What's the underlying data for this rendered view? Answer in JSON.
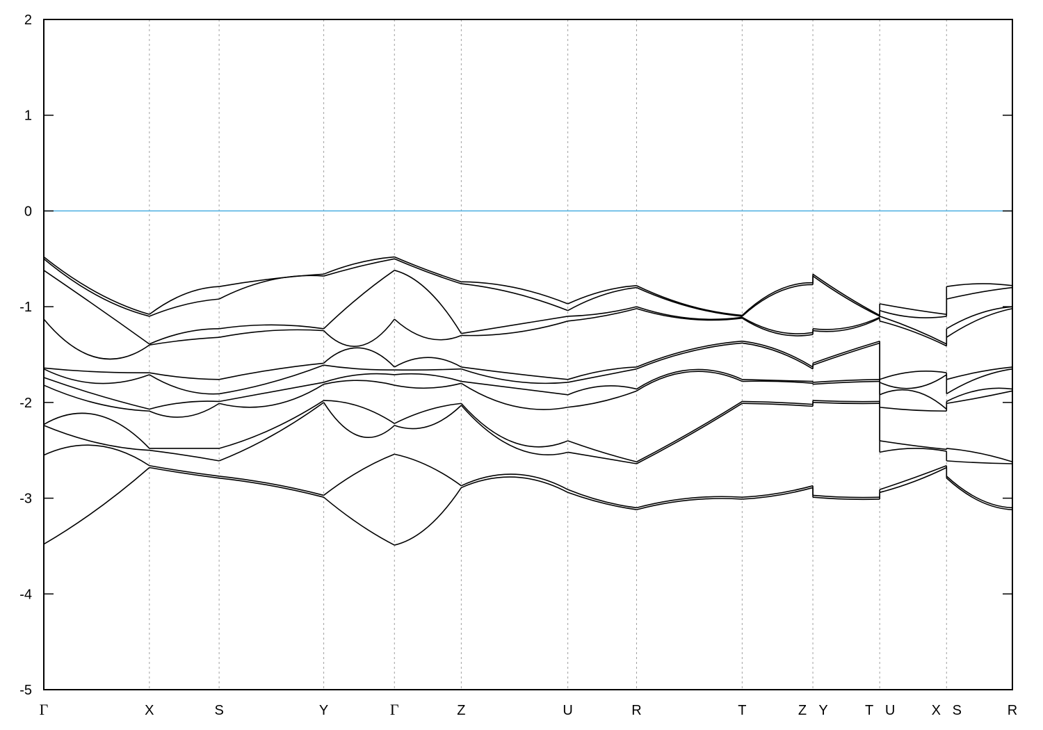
{
  "chart_data": {
    "type": "line",
    "title": "",
    "xlabel": "",
    "ylabel": "",
    "ylim": [
      -5,
      2
    ],
    "yticks": [
      -5,
      -4,
      -3,
      -2,
      -1,
      0,
      1,
      2
    ],
    "xlim": [
      0,
      1
    ],
    "grid": "vertical dashed at high-symmetry points",
    "fermi_level": 0,
    "colors": {
      "bands": "#000000",
      "fermi": "#4aaee0",
      "grid": "#a0a0a0"
    },
    "xticks": [
      {
        "k": 0,
        "labels": [
          "Γ"
        ]
      },
      {
        "k": 0.109,
        "labels": [
          "X"
        ]
      },
      {
        "k": 0.181,
        "labels": [
          "S"
        ]
      },
      {
        "k": 0.289,
        "labels": [
          "Y"
        ]
      },
      {
        "k": 0.362,
        "labels": [
          "Γ"
        ]
      },
      {
        "k": 0.431,
        "labels": [
          "Z"
        ]
      },
      {
        "k": 0.541,
        "labels": [
          "U"
        ]
      },
      {
        "k": 0.612,
        "labels": [
          "R"
        ]
      },
      {
        "k": 0.721,
        "labels": [
          "T"
        ]
      },
      {
        "k": 0.794,
        "labels": [
          "Z",
          "Y"
        ]
      },
      {
        "k": 0.863,
        "labels": [
          "T",
          "U"
        ]
      },
      {
        "k": 0.932,
        "labels": [
          "X",
          "S"
        ]
      },
      {
        "k": 1.0,
        "labels": [
          "R"
        ]
      }
    ],
    "segments": [
      {
        "path": "Γ-X",
        "k": [
          0,
          0.109
        ],
        "E": [
          [
            -0.48,
            -0.5,
            -0.62,
            -1.13,
            -1.64,
            -1.65,
            -1.74,
            -1.82,
            -2.23,
            -2.24,
            -2.55,
            -3.48
          ],
          [
            -0.85,
            -0.88,
            -1.0,
            -1.53,
            -1.68,
            -1.8,
            -1.92,
            -2.01,
            -2.13,
            -2.42,
            -2.45,
            -3.12
          ],
          [
            -1.08,
            -1.1,
            -1.39,
            -1.4,
            -1.69,
            -1.71,
            -2.07,
            -2.09,
            -2.48,
            -2.5,
            -2.66,
            -2.68
          ]
        ]
      },
      {
        "path": "X-S",
        "k": [
          0.109,
          0.181
        ],
        "E": [
          [
            -1.08,
            -1.1,
            -1.39,
            -1.4,
            -1.69,
            -1.71,
            -2.07,
            -2.09,
            -2.48,
            -2.5,
            -2.66,
            -2.68
          ],
          [
            -0.87,
            -0.98,
            -1.27,
            -1.35,
            -1.74,
            -1.87,
            -2.0,
            -2.15,
            -2.48,
            -2.55,
            -2.72,
            -2.74
          ],
          [
            -0.79,
            -0.92,
            -1.23,
            -1.32,
            -1.76,
            -1.91,
            -1.99,
            -2.01,
            -2.48,
            -2.61,
            -2.77,
            -2.79
          ]
        ]
      },
      {
        "path": "S-Y",
        "k": [
          0.181,
          0.289
        ],
        "E": [
          [
            -0.79,
            -0.92,
            -1.23,
            -1.32,
            -1.76,
            -1.91,
            -1.99,
            -2.01,
            -2.48,
            -2.61,
            -2.77,
            -2.79
          ],
          [
            -0.71,
            -0.72,
            -1.19,
            -1.25,
            -1.66,
            -1.79,
            -1.89,
            -2.03,
            -2.28,
            -2.35,
            -2.85,
            -2.87
          ],
          [
            -0.66,
            -0.68,
            -1.23,
            -1.25,
            -1.59,
            -1.61,
            -1.79,
            -1.81,
            -1.98,
            -2.0,
            -2.97,
            -2.99
          ]
        ]
      },
      {
        "path": "Y-Γ",
        "k": [
          0.289,
          0.362
        ],
        "E": [
          [
            -0.66,
            -0.68,
            -1.23,
            -1.25,
            -1.59,
            -1.61,
            -1.79,
            -1.81,
            -1.98,
            -2.0,
            -2.97,
            -2.99
          ],
          [
            -0.54,
            -0.58,
            -0.9,
            -1.41,
            -1.43,
            -1.65,
            -1.71,
            -1.77,
            -2.04,
            -2.35,
            -2.72,
            -3.27
          ],
          [
            -0.48,
            -0.5,
            -0.62,
            -1.13,
            -1.63,
            -1.66,
            -1.71,
            -1.82,
            -2.22,
            -2.24,
            -2.54,
            -3.49
          ]
        ]
      },
      {
        "path": "Γ-Z",
        "k": [
          0.362,
          0.431
        ],
        "E": [
          [
            -0.48,
            -0.5,
            -0.62,
            -1.13,
            -1.63,
            -1.66,
            -1.71,
            -1.82,
            -2.22,
            -2.24,
            -2.54,
            -3.49
          ],
          [
            -0.62,
            -0.64,
            -0.83,
            -1.33,
            -1.53,
            -1.66,
            -1.71,
            -1.85,
            -2.08,
            -2.25,
            -2.66,
            -3.3
          ],
          [
            -0.74,
            -0.76,
            -1.28,
            -1.3,
            -1.63,
            -1.65,
            -1.78,
            -1.8,
            -2.01,
            -2.03,
            -2.87,
            -2.89
          ]
        ]
      },
      {
        "path": "Z-U",
        "k": [
          0.431,
          0.541
        ],
        "E": [
          [
            -0.74,
            -0.76,
            -1.28,
            -1.3,
            -1.63,
            -1.65,
            -1.78,
            -1.8,
            -2.01,
            -2.03,
            -2.87,
            -2.89
          ],
          [
            -0.8,
            -0.86,
            -1.19,
            -1.27,
            -1.7,
            -1.78,
            -1.85,
            -2.04,
            -2.42,
            -2.47,
            -2.75,
            -2.78
          ],
          [
            -0.97,
            -1.04,
            -1.1,
            -1.15,
            -1.76,
            -1.79,
            -1.92,
            -2.05,
            -2.4,
            -2.52,
            -2.91,
            -2.94
          ]
        ]
      },
      {
        "path": "U-R",
        "k": [
          0.541,
          0.612
        ],
        "E": [
          [
            -0.97,
            -1.04,
            -1.1,
            -1.15,
            -1.76,
            -1.79,
            -1.92,
            -2.05,
            -2.4,
            -2.52,
            -2.91,
            -2.94
          ],
          [
            -0.84,
            -0.88,
            -1.07,
            -1.1,
            -1.67,
            -1.72,
            -1.83,
            -1.99,
            -2.52,
            -2.58,
            -3.03,
            -3.05
          ],
          [
            -0.78,
            -0.8,
            -1.0,
            -1.02,
            -1.63,
            -1.65,
            -1.86,
            -1.88,
            -2.62,
            -2.64,
            -3.1,
            -3.12
          ]
        ]
      },
      {
        "path": "R-T",
        "k": [
          0.612,
          0.721
        ],
        "E": [
          [
            -0.78,
            -0.8,
            -1.0,
            -1.02,
            -1.63,
            -1.65,
            -1.86,
            -1.88,
            -2.62,
            -2.64,
            -3.1,
            -3.12
          ],
          [
            -0.99,
            -1.0,
            -1.12,
            -1.13,
            -1.45,
            -1.47,
            -1.66,
            -1.68,
            -2.32,
            -2.34,
            -3.0,
            -3.02
          ],
          [
            -1.09,
            -1.1,
            -1.11,
            -1.12,
            -1.36,
            -1.38,
            -1.76,
            -1.78,
            -1.99,
            -2.01,
            -2.99,
            -3.01
          ]
        ]
      },
      {
        "path": "T-Z",
        "k": [
          0.721,
          0.794
        ],
        "E": [
          [
            -1.09,
            -1.1,
            -1.11,
            -1.12,
            -1.36,
            -1.38,
            -1.76,
            -1.78,
            -1.99,
            -2.01,
            -2.99,
            -3.01
          ],
          [
            -0.83,
            -0.85,
            -1.26,
            -1.28,
            -1.45,
            -1.47,
            -1.77,
            -1.78,
            -2.0,
            -2.02,
            -2.95,
            -2.97
          ],
          [
            -0.75,
            -0.77,
            -1.27,
            -1.29,
            -1.63,
            -1.65,
            -1.78,
            -1.8,
            -2.02,
            -2.04,
            -2.87,
            -2.89
          ]
        ]
      },
      {
        "path": "Y-T",
        "k": [
          0.794,
          0.863
        ],
        "E": [
          [
            -0.66,
            -0.68,
            -1.23,
            -1.25,
            -1.59,
            -1.61,
            -1.79,
            -1.81,
            -1.98,
            -2.0,
            -2.97,
            -2.99
          ],
          [
            -0.89,
            -0.91,
            -1.22,
            -1.24,
            -1.47,
            -1.49,
            -1.77,
            -1.79,
            -1.99,
            -2.01,
            -2.99,
            -3.01
          ],
          [
            -1.09,
            -1.1,
            -1.11,
            -1.12,
            -1.36,
            -1.38,
            -1.76,
            -1.78,
            -1.99,
            -2.01,
            -2.99,
            -3.01
          ]
        ]
      },
      {
        "path": "U-X",
        "k": [
          0.863,
          0.932
        ],
        "E": [
          [
            -0.97,
            -1.04,
            -1.1,
            -1.15,
            -1.76,
            -1.79,
            -1.92,
            -2.05,
            -2.4,
            -2.52,
            -2.91,
            -2.94
          ],
          [
            -1.03,
            -1.11,
            -1.23,
            -1.26,
            -1.68,
            -1.85,
            -1.88,
            -2.08,
            -2.45,
            -2.48,
            -2.79,
            -2.83
          ],
          [
            -1.08,
            -1.1,
            -1.39,
            -1.41,
            -1.69,
            -1.71,
            -2.07,
            -2.09,
            -2.49,
            -2.51,
            -2.66,
            -2.68
          ]
        ]
      },
      {
        "path": "S-R",
        "k": [
          0.932,
          1.0
        ],
        "E": [
          [
            -0.79,
            -0.92,
            -1.23,
            -1.32,
            -1.76,
            -1.91,
            -1.99,
            -2.01,
            -2.48,
            -2.61,
            -2.77,
            -2.79
          ],
          [
            -0.76,
            -0.85,
            -1.07,
            -1.13,
            -1.68,
            -1.74,
            -1.87,
            -1.95,
            -2.53,
            -2.63,
            -3.01,
            -3.03
          ],
          [
            -0.78,
            -0.8,
            -1.0,
            -1.02,
            -1.63,
            -1.65,
            -1.86,
            -1.88,
            -2.62,
            -2.64,
            -3.1,
            -3.12
          ]
        ]
      }
    ]
  }
}
